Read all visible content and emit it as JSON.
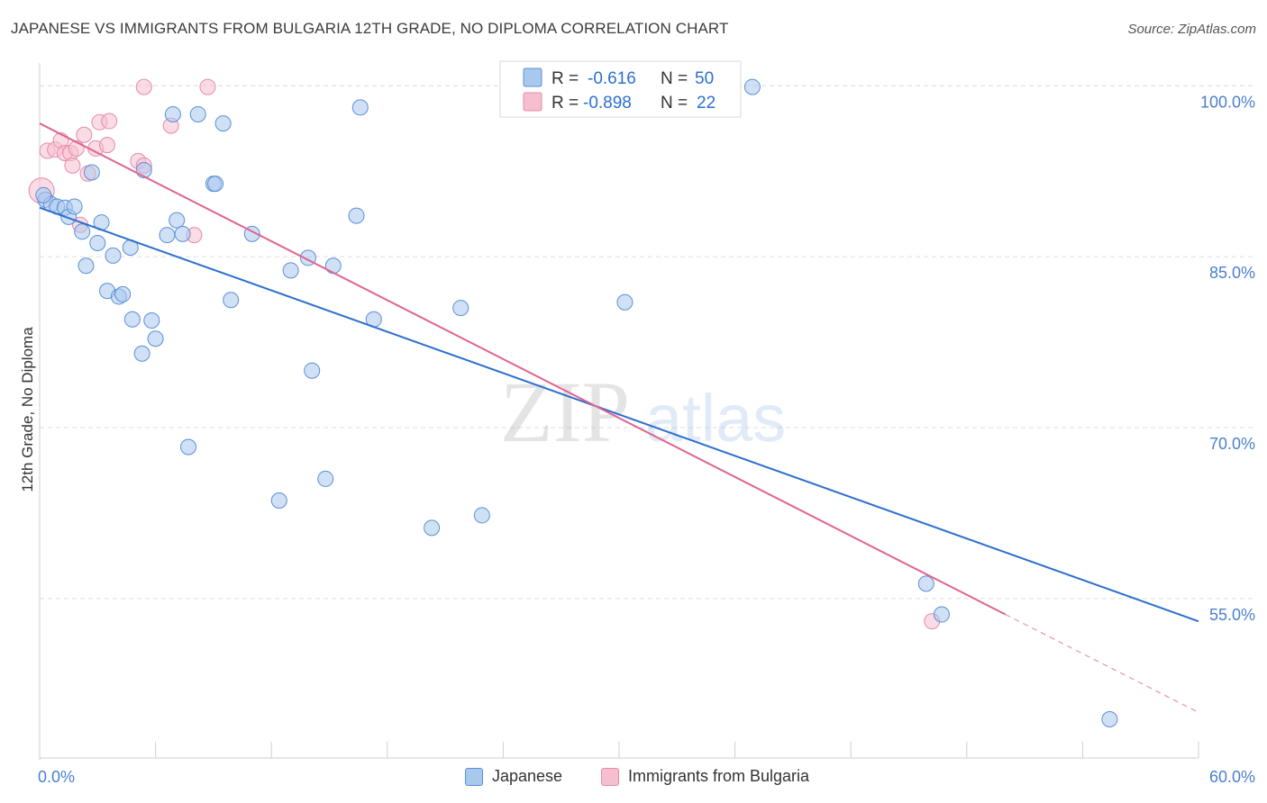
{
  "header": {
    "title": "JAPANESE VS IMMIGRANTS FROM BULGARIA 12TH GRADE, NO DIPLOMA CORRELATION CHART",
    "source": "Source: ZipAtlas.com"
  },
  "watermark": {
    "zip": "ZIP",
    "atlas": "atlas"
  },
  "colors": {
    "blue_fill": "#a9c8ee",
    "blue_stroke": "#5a8fd6",
    "blue_line": "#2c6fce",
    "pink_fill": "#f6bfd0",
    "pink_stroke": "#e58aa8",
    "pink_line": "#e0648f",
    "axis_text": "#4a7fcf",
    "grid": "#dcdcdc"
  },
  "stats_legend": [
    {
      "r_label": "R =",
      "r_value": "-0.616",
      "n_label": "N =",
      "n_value": "50",
      "series": "Japanese"
    },
    {
      "r_label": "R =",
      "r_value": "-0.898",
      "n_label": "N =",
      "n_value": "22",
      "series": "Immigrants from Bulgaria"
    }
  ],
  "chart_data": {
    "type": "scatter",
    "title": "JAPANESE VS IMMIGRANTS FROM BULGARIA 12TH GRADE, NO DIPLOMA CORRELATION CHART",
    "ylabel": "12th Grade, No Diploma",
    "xlabel": "",
    "xlim": [
      0,
      60
    ],
    "ylim": [
      41,
      102
    ],
    "x_tick_labels": [
      "0.0%",
      "60.0%"
    ],
    "y_ticks": [
      100,
      85,
      70,
      55
    ],
    "y_tick_labels": [
      "100.0%",
      "85.0%",
      "70.0%",
      "55.0%"
    ],
    "legend_position": "bottom",
    "series": [
      {
        "name": "Japanese",
        "points": [
          {
            "x": 0.3,
            "y": 90.0
          },
          {
            "x": 0.6,
            "y": 89.6
          },
          {
            "x": 0.9,
            "y": 89.4
          },
          {
            "x": 1.3,
            "y": 89.3
          },
          {
            "x": 1.5,
            "y": 88.5
          },
          {
            "x": 1.8,
            "y": 89.4
          },
          {
            "x": 2.2,
            "y": 87.2
          },
          {
            "x": 2.4,
            "y": 84.2
          },
          {
            "x": 2.7,
            "y": 92.4
          },
          {
            "x": 3.0,
            "y": 86.2
          },
          {
            "x": 3.2,
            "y": 88.0
          },
          {
            "x": 3.5,
            "y": 82.0
          },
          {
            "x": 3.8,
            "y": 85.1
          },
          {
            "x": 4.1,
            "y": 81.5
          },
          {
            "x": 4.3,
            "y": 81.7
          },
          {
            "x": 4.7,
            "y": 85.8
          },
          {
            "x": 4.8,
            "y": 79.5
          },
          {
            "x": 5.3,
            "y": 76.5
          },
          {
            "x": 5.4,
            "y": 92.6
          },
          {
            "x": 5.8,
            "y": 79.4
          },
          {
            "x": 6.0,
            "y": 77.8
          },
          {
            "x": 6.6,
            "y": 86.9
          },
          {
            "x": 6.9,
            "y": 97.5
          },
          {
            "x": 7.1,
            "y": 88.2
          },
          {
            "x": 7.4,
            "y": 87.0
          },
          {
            "x": 7.7,
            "y": 68.3
          },
          {
            "x": 8.2,
            "y": 97.5
          },
          {
            "x": 9.0,
            "y": 91.4
          },
          {
            "x": 9.1,
            "y": 91.4
          },
          {
            "x": 9.5,
            "y": 96.7
          },
          {
            "x": 9.9,
            "y": 81.2
          },
          {
            "x": 11.0,
            "y": 87.0
          },
          {
            "x": 12.4,
            "y": 63.6
          },
          {
            "x": 13.0,
            "y": 83.8
          },
          {
            "x": 13.9,
            "y": 84.9
          },
          {
            "x": 14.1,
            "y": 75.0
          },
          {
            "x": 14.8,
            "y": 65.5
          },
          {
            "x": 15.2,
            "y": 84.2
          },
          {
            "x": 16.6,
            "y": 98.1
          },
          {
            "x": 16.4,
            "y": 88.6
          },
          {
            "x": 17.3,
            "y": 79.5
          },
          {
            "x": 20.3,
            "y": 61.2
          },
          {
            "x": 21.8,
            "y": 80.5
          },
          {
            "x": 22.9,
            "y": 62.3
          },
          {
            "x": 30.3,
            "y": 81.0
          },
          {
            "x": 36.9,
            "y": 99.9
          },
          {
            "x": 45.9,
            "y": 56.3
          },
          {
            "x": 46.7,
            "y": 53.6
          },
          {
            "x": 55.4,
            "y": 44.4
          },
          {
            "x": 0.2,
            "y": 90.4
          }
        ],
        "trend": {
          "x": [
            0.0,
            60.0
          ],
          "y": [
            89.3,
            53.0
          ]
        }
      },
      {
        "name": "Immigrants from Bulgaria",
        "points": [
          {
            "x": 0.1,
            "y": 90.8
          },
          {
            "x": 0.4,
            "y": 94.3
          },
          {
            "x": 0.8,
            "y": 94.4
          },
          {
            "x": 1.1,
            "y": 95.2
          },
          {
            "x": 1.3,
            "y": 94.1
          },
          {
            "x": 1.6,
            "y": 94.1
          },
          {
            "x": 1.7,
            "y": 93.0
          },
          {
            "x": 1.9,
            "y": 94.5
          },
          {
            "x": 2.1,
            "y": 87.8
          },
          {
            "x": 2.3,
            "y": 95.7
          },
          {
            "x": 2.5,
            "y": 92.3
          },
          {
            "x": 2.9,
            "y": 94.5
          },
          {
            "x": 3.1,
            "y": 96.8
          },
          {
            "x": 3.5,
            "y": 94.8
          },
          {
            "x": 3.6,
            "y": 96.9
          },
          {
            "x": 5.1,
            "y": 93.4
          },
          {
            "x": 5.4,
            "y": 93.0
          },
          {
            "x": 5.4,
            "y": 99.9
          },
          {
            "x": 6.8,
            "y": 96.5
          },
          {
            "x": 8.0,
            "y": 86.9
          },
          {
            "x": 8.7,
            "y": 99.9
          },
          {
            "x": 46.2,
            "y": 53.0
          }
        ],
        "trend": {
          "x": [
            0.0,
            50.0
          ],
          "y": [
            96.7,
            53.6
          ]
        },
        "trend_extension": {
          "x": [
            50.0,
            60.0
          ],
          "y": [
            53.6,
            45.0
          ]
        }
      }
    ]
  }
}
